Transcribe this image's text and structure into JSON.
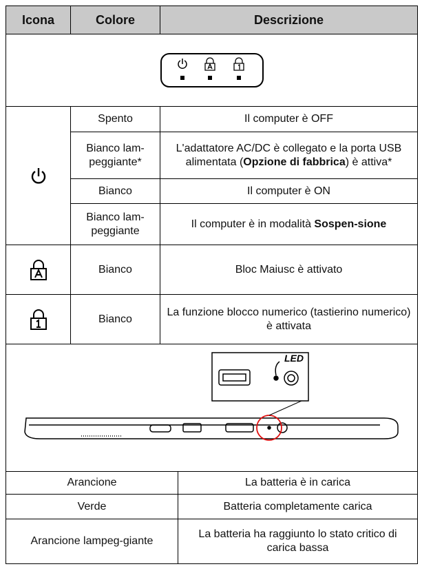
{
  "header": [
    "Icona",
    "Colore",
    "Descrizione"
  ],
  "power_rows": [
    {
      "color": "Spento",
      "description": [
        {
          "text": "Il computer è OFF",
          "bold": false
        }
      ]
    },
    {
      "color": "Bianco lam-peggiante*",
      "description": [
        {
          "text": "L'adattatore AC/DC è collegato e la porta USB alimentata (",
          "bold": false
        },
        {
          "text": "Opzione di fabbrica",
          "bold": true
        },
        {
          "text": ") è attiva*",
          "bold": false
        }
      ]
    },
    {
      "color": "Bianco",
      "description": [
        {
          "text": "Il computer è ON",
          "bold": false
        }
      ]
    },
    {
      "color": "Bianco lam-peggiante",
      "description": [
        {
          "text": "Il computer è in modalità ",
          "bold": false
        },
        {
          "text": "Sospen-sione",
          "bold": true
        }
      ]
    }
  ],
  "caps_row": {
    "color": "Bianco",
    "description": "Bloc Maiusc è attivato"
  },
  "num_row": {
    "color": "Bianco",
    "description": "La funzione blocco numerico (tastierino numerico) è attivata"
  },
  "image_label": "LED",
  "battery_rows": [
    {
      "color": "Arancione",
      "description": "La batteria è in carica"
    },
    {
      "color": "Verde",
      "description": "Batteria completamente carica"
    },
    {
      "color": "Arancione lampeg-giante",
      "description": "La batteria ha raggiunto lo stato critico di carica bassa"
    }
  ]
}
